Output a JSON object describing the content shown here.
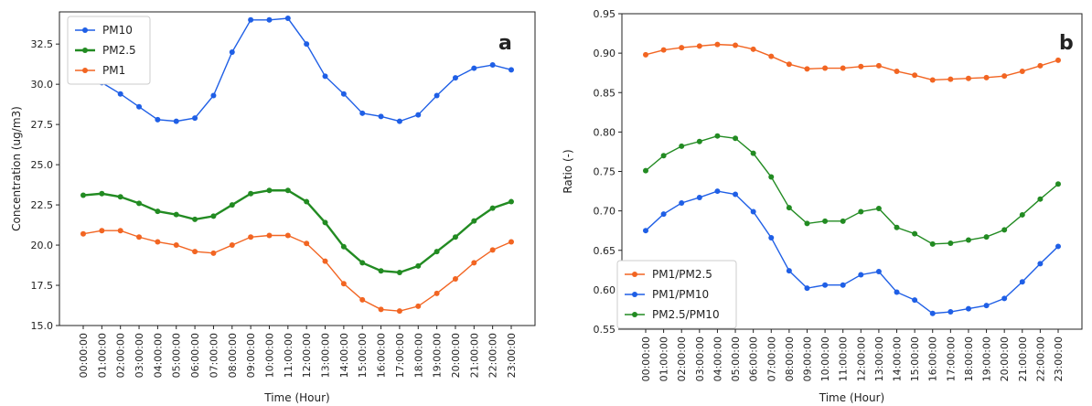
{
  "chart_data": [
    {
      "type": "line",
      "panel_letter": "a",
      "xlabel": "Time (Hour)",
      "ylabel": "Concentration (ug/m3)",
      "categories": [
        "00:00:00",
        "01:00:00",
        "02:00:00",
        "03:00:00",
        "04:00:00",
        "05:00:00",
        "06:00:00",
        "07:00:00",
        "08:00:00",
        "09:00:00",
        "10:00:00",
        "11:00:00",
        "12:00:00",
        "13:00:00",
        "14:00:00",
        "15:00:00",
        "16:00:00",
        "17:00:00",
        "18:00:00",
        "19:00:00",
        "20:00:00",
        "21:00:00",
        "22:00:00",
        "23:00:00"
      ],
      "ylim": [
        15.0,
        34.5
      ],
      "yticks": [
        "15.0",
        "17.5",
        "20.0",
        "22.5",
        "25.0",
        "27.5",
        "30.0",
        "32.5"
      ],
      "grid": false,
      "legend": "top-left",
      "series": [
        {
          "name": "PM10",
          "color": "#1f5fe6",
          "values": [
            30.7,
            30.1,
            29.4,
            28.6,
            27.8,
            27.7,
            27.9,
            29.3,
            32.0,
            34.0,
            34.0,
            34.1,
            32.5,
            30.5,
            29.4,
            28.2,
            28.0,
            27.7,
            28.1,
            29.3,
            30.4,
            31.0,
            31.2,
            30.9
          ]
        },
        {
          "name": "PM2.5",
          "color": "#228b22",
          "values": [
            23.1,
            23.2,
            23.0,
            22.6,
            22.1,
            21.9,
            21.6,
            21.8,
            22.5,
            23.2,
            23.4,
            23.4,
            22.7,
            21.4,
            19.9,
            18.9,
            18.4,
            18.3,
            18.7,
            19.6,
            20.5,
            21.5,
            22.3,
            22.7
          ]
        },
        {
          "name": "PM1",
          "color": "#f26522",
          "values": [
            20.7,
            20.9,
            20.9,
            20.5,
            20.2,
            20.0,
            19.6,
            19.5,
            20.0,
            20.5,
            20.6,
            20.6,
            20.1,
            19.0,
            17.6,
            16.6,
            16.0,
            15.9,
            16.2,
            17.0,
            17.9,
            18.9,
            19.7,
            20.2
          ]
        }
      ]
    },
    {
      "type": "line",
      "panel_letter": "b",
      "xlabel": "Time (Hour)",
      "ylabel": "Ratio (-)",
      "categories": [
        "00:00:00",
        "01:00:00",
        "02:00:00",
        "03:00:00",
        "04:00:00",
        "05:00:00",
        "06:00:00",
        "07:00:00",
        "08:00:00",
        "09:00:00",
        "10:00:00",
        "11:00:00",
        "12:00:00",
        "13:00:00",
        "14:00:00",
        "15:00:00",
        "16:00:00",
        "17:00:00",
        "18:00:00",
        "19:00:00",
        "20:00:00",
        "21:00:00",
        "22:00:00",
        "23:00:00"
      ],
      "ylim": [
        0.55,
        0.95
      ],
      "yticks": [
        "0.55",
        "0.60",
        "0.65",
        "0.70",
        "0.75",
        "0.80",
        "0.85",
        "0.90",
        "0.95"
      ],
      "grid": false,
      "legend": "bottom-left",
      "series": [
        {
          "name": "PM1/PM2.5",
          "color": "#f26522",
          "values": [
            0.898,
            0.904,
            0.907,
            0.909,
            0.911,
            0.91,
            0.905,
            0.896,
            0.886,
            0.88,
            0.881,
            0.881,
            0.883,
            0.884,
            0.877,
            0.872,
            0.866,
            0.867,
            0.868,
            0.869,
            0.871,
            0.877,
            0.884,
            0.891
          ]
        },
        {
          "name": "PM1/PM10",
          "color": "#1f5fe6",
          "values": [
            0.675,
            0.696,
            0.71,
            0.717,
            0.725,
            0.721,
            0.699,
            0.666,
            0.624,
            0.602,
            0.606,
            0.606,
            0.619,
            0.623,
            0.597,
            0.587,
            0.57,
            0.572,
            0.576,
            0.58,
            0.589,
            0.61,
            0.633,
            0.655
          ]
        },
        {
          "name": "PM2.5/PM10",
          "color": "#228b22",
          "values": [
            0.751,
            0.77,
            0.782,
            0.788,
            0.795,
            0.792,
            0.773,
            0.743,
            0.704,
            0.684,
            0.687,
            0.687,
            0.699,
            0.703,
            0.679,
            0.671,
            0.658,
            0.659,
            0.663,
            0.667,
            0.676,
            0.695,
            0.715,
            0.734
          ]
        }
      ]
    }
  ]
}
